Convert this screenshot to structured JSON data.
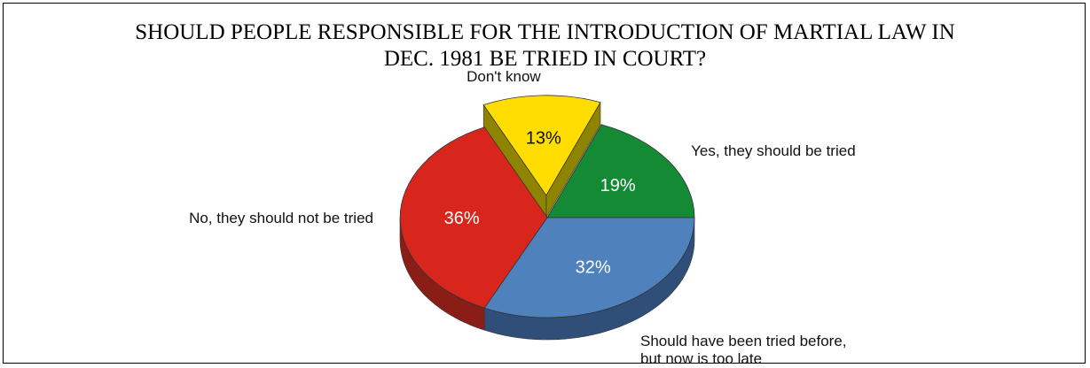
{
  "title": {
    "line1": "SHOULD PEOPLE RESPONSIBLE FOR THE INTRODUCTION OF MARTIAL LAW IN",
    "line2": "DEC. 1981 BE TRIED IN COURT?"
  },
  "chart_data": {
    "type": "pie",
    "title": "SHOULD PEOPLE RESPONSIBLE FOR THE INTRODUCTION OF MARTIAL LAW IN DEC. 1981 BE TRIED IN COURT?",
    "slices": [
      {
        "label_lines": [
          "Yes, they should be tried"
        ],
        "value": 19,
        "value_label": "19%",
        "color": "#138a33",
        "side_color": "#0b5a20",
        "text_color": "#ffffff",
        "exploded": false
      },
      {
        "label_lines": [
          "Don't know"
        ],
        "value": 13,
        "value_label": "13%",
        "color": "#ffdd00",
        "side_color": "#8f8400",
        "text_color": "#111111",
        "exploded": true
      },
      {
        "label_lines": [
          "No, they should not be tried"
        ],
        "value": 36,
        "value_label": "36%",
        "color": "#d9261c",
        "side_color": "#8a1d15",
        "text_color": "#ffffff",
        "exploded": false
      },
      {
        "label_lines": [
          "Should have been tried before,",
          "but now is too late"
        ],
        "value": 32,
        "value_label": "32%",
        "color": "#4f81bd",
        "side_color": "#2f4f78",
        "text_color": "#ffffff",
        "exploded": false
      }
    ]
  }
}
